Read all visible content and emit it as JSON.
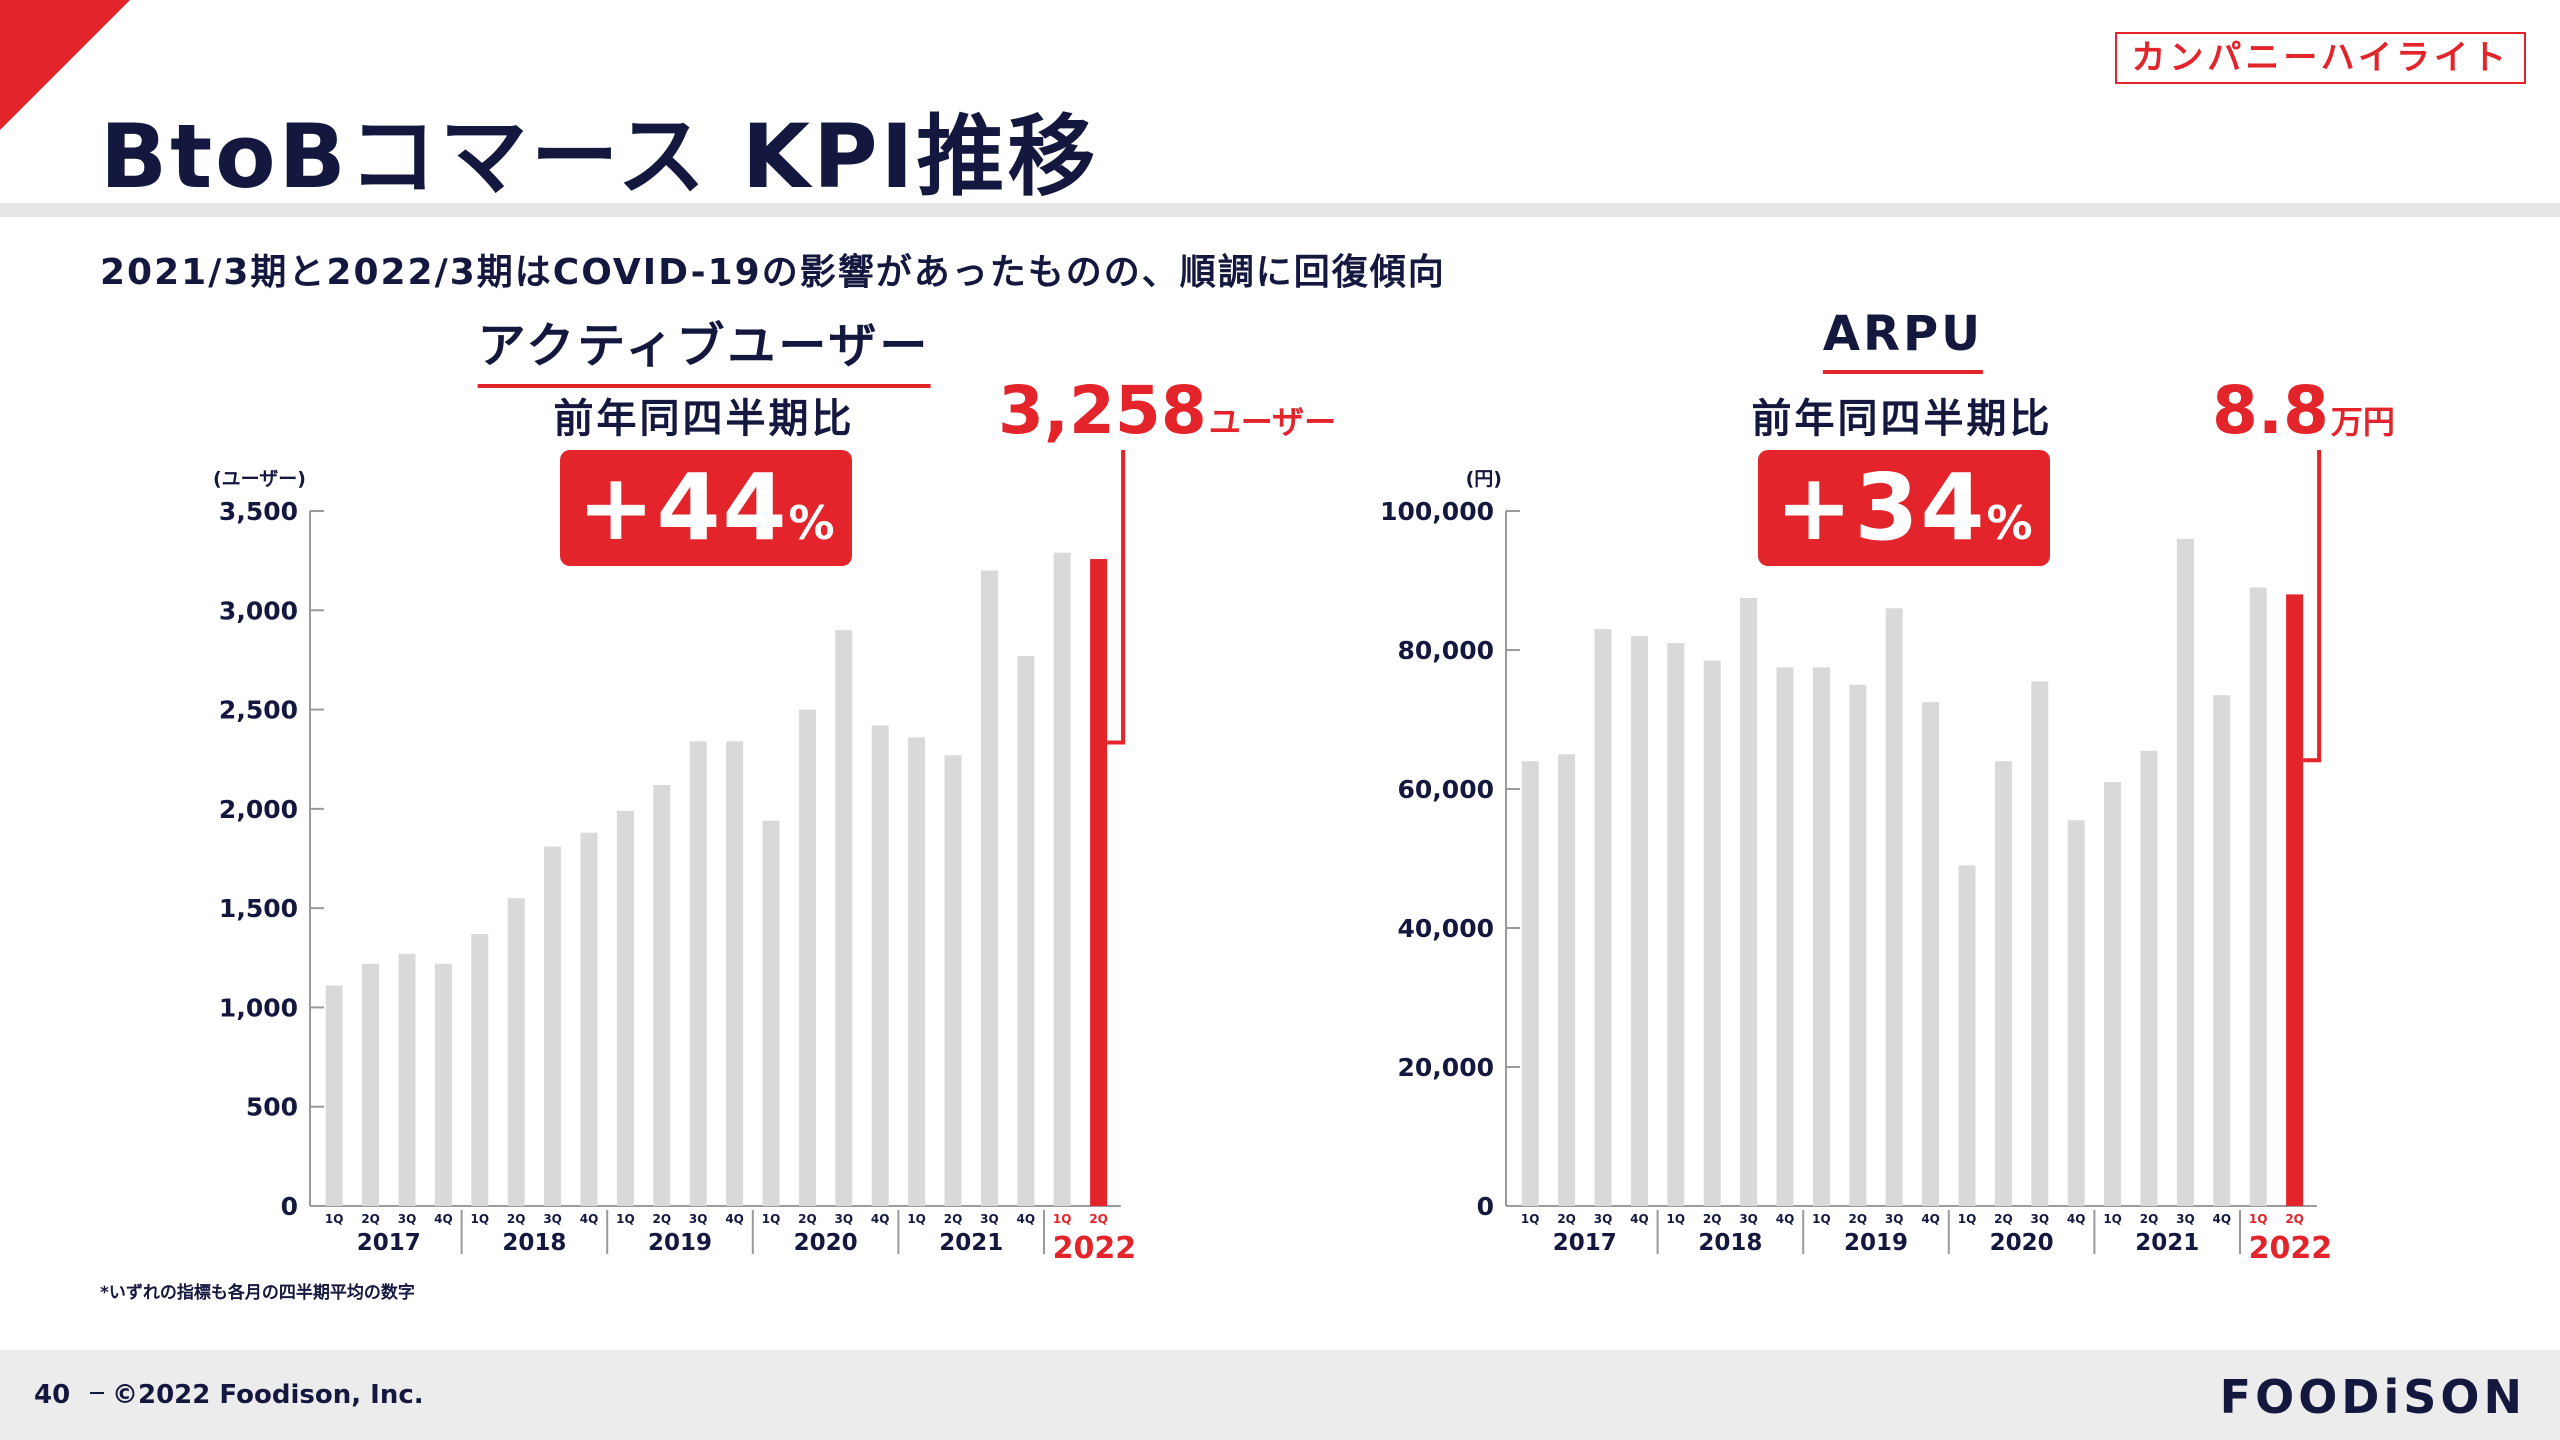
{
  "header": {
    "badge": "カンパニーハイライト",
    "title": "BtoBコマース KPI推移",
    "subtitle": "2021/3期と2022/3期はCOVID-19の影響があったものの、順調に回復傾向"
  },
  "footer": {
    "page_number": "40",
    "copyright": "©2022 Foodison, Inc.",
    "logo": "FOODiSON",
    "footnote": "*いずれの指標も各月の四半期平均の数字"
  },
  "colors": {
    "accent": "#e3242b",
    "bar": "#d9d9d9",
    "text": "#14183f"
  },
  "chart_data": [
    {
      "type": "bar",
      "title": "アクティブユーザー",
      "yoy_label": "前年同四半期比",
      "yoy_value": "+44",
      "yoy_unit": "%",
      "callout_value": "3,258",
      "callout_unit": "ユーザー",
      "ylabel": "(ユーザー)",
      "ylim": [
        0,
        3500
      ],
      "yticks": [
        0,
        500,
        1000,
        1500,
        2000,
        2500,
        3000,
        3500
      ],
      "ytick_labels": [
        "0",
        "500",
        "1,000",
        "1,500",
        "2,000",
        "2,500",
        "3,000",
        "3,500"
      ],
      "quarters": [
        "1Q",
        "2Q",
        "3Q",
        "4Q",
        "1Q",
        "2Q",
        "3Q",
        "4Q",
        "1Q",
        "2Q",
        "3Q",
        "4Q",
        "1Q",
        "2Q",
        "3Q",
        "4Q",
        "1Q",
        "2Q",
        "3Q",
        "4Q",
        "1Q",
        "2Q"
      ],
      "years": [
        "2017",
        "2018",
        "2019",
        "2020",
        "2021",
        "2022"
      ],
      "values": [
        1110,
        1220,
        1270,
        1220,
        1370,
        1550,
        1810,
        1880,
        1990,
        2120,
        2340,
        2340,
        1940,
        2500,
        2900,
        2420,
        2360,
        2270,
        3200,
        2770,
        3290,
        3258
      ],
      "highlight_index": 21
    },
    {
      "type": "bar",
      "title": "ARPU",
      "yoy_label": "前年同四半期比",
      "yoy_value": "+34",
      "yoy_unit": "%",
      "callout_value": "8.8",
      "callout_unit": "万円",
      "ylabel": "(円)",
      "ylim": [
        0,
        100000
      ],
      "yticks": [
        0,
        20000,
        40000,
        60000,
        80000,
        100000
      ],
      "ytick_labels": [
        "0",
        "20,000",
        "40,000",
        "60,000",
        "80,000",
        "100,000"
      ],
      "quarters": [
        "1Q",
        "2Q",
        "3Q",
        "4Q",
        "1Q",
        "2Q",
        "3Q",
        "4Q",
        "1Q",
        "2Q",
        "3Q",
        "4Q",
        "1Q",
        "2Q",
        "3Q",
        "4Q",
        "1Q",
        "2Q",
        "3Q",
        "4Q",
        "1Q",
        "2Q"
      ],
      "years": [
        "2017",
        "2018",
        "2019",
        "2020",
        "2021",
        "2022"
      ],
      "values": [
        64000,
        65000,
        83000,
        82000,
        81000,
        78500,
        87500,
        77500,
        77500,
        75000,
        86000,
        72500,
        49000,
        64000,
        75500,
        55500,
        61000,
        65500,
        96000,
        73500,
        89000,
        88000
      ],
      "highlight_index": 21
    }
  ]
}
